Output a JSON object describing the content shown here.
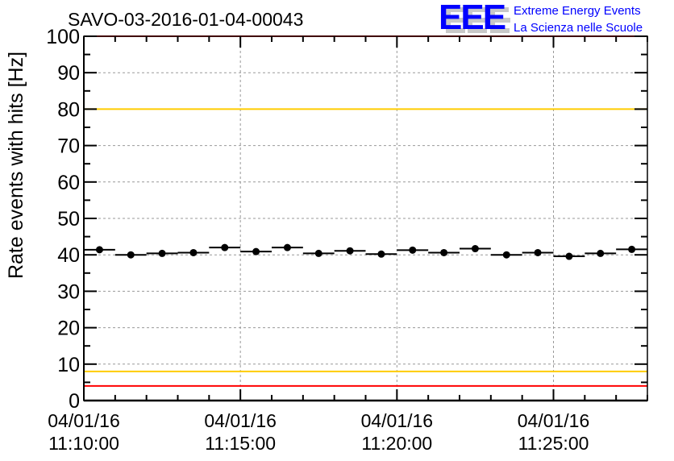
{
  "chart_data": {
    "type": "scatter",
    "title": "SAVO-03-2016-01-04-00043",
    "xlabel": "",
    "ylabel": "Rate events with hits [Hz]",
    "ylim": [
      0,
      100
    ],
    "xlim_minutes_after_11_10": [
      0,
      18
    ],
    "yticks": [
      0,
      10,
      20,
      30,
      40,
      50,
      60,
      70,
      80,
      90,
      100
    ],
    "xticks": [
      {
        "minute": 0,
        "date": "04/01/16",
        "time": "11:10:00"
      },
      {
        "minute": 5,
        "date": "04/01/16",
        "time": "11:15:00"
      },
      {
        "minute": 10,
        "date": "04/01/16",
        "time": "11:20:00"
      },
      {
        "minute": 15,
        "date": "04/01/16",
        "time": "11:25:00"
      }
    ],
    "grid": true,
    "bin_width_minutes": 1,
    "x_bin_centers_minutes": [
      0.5,
      1.5,
      2.5,
      3.5,
      4.5,
      5.5,
      6.5,
      7.5,
      8.5,
      9.5,
      10.5,
      11.5,
      12.5,
      13.5,
      14.5,
      15.5,
      16.5,
      17.5
    ],
    "values": [
      41.4,
      40.0,
      40.4,
      40.6,
      42.0,
      40.9,
      42.0,
      40.4,
      41.1,
      40.2,
      41.3,
      40.6,
      41.7,
      40.0,
      40.6,
      39.6,
      40.4,
      41.5
    ],
    "reference_lines": [
      {
        "value": 100,
        "color": "#ff0000"
      },
      {
        "value": 80,
        "color": "#ffcc00"
      },
      {
        "value": 8,
        "color": "#ffcc00"
      },
      {
        "value": 4,
        "color": "#ff0000"
      }
    ],
    "colors": {
      "marker": "#000000",
      "logo": "#0000ff",
      "logo_shadow": "#c8c8c8"
    }
  },
  "logo": {
    "letters": "EEE",
    "line1": "Extreme Energy Events",
    "line2": "La Scienza nelle Scuole"
  }
}
